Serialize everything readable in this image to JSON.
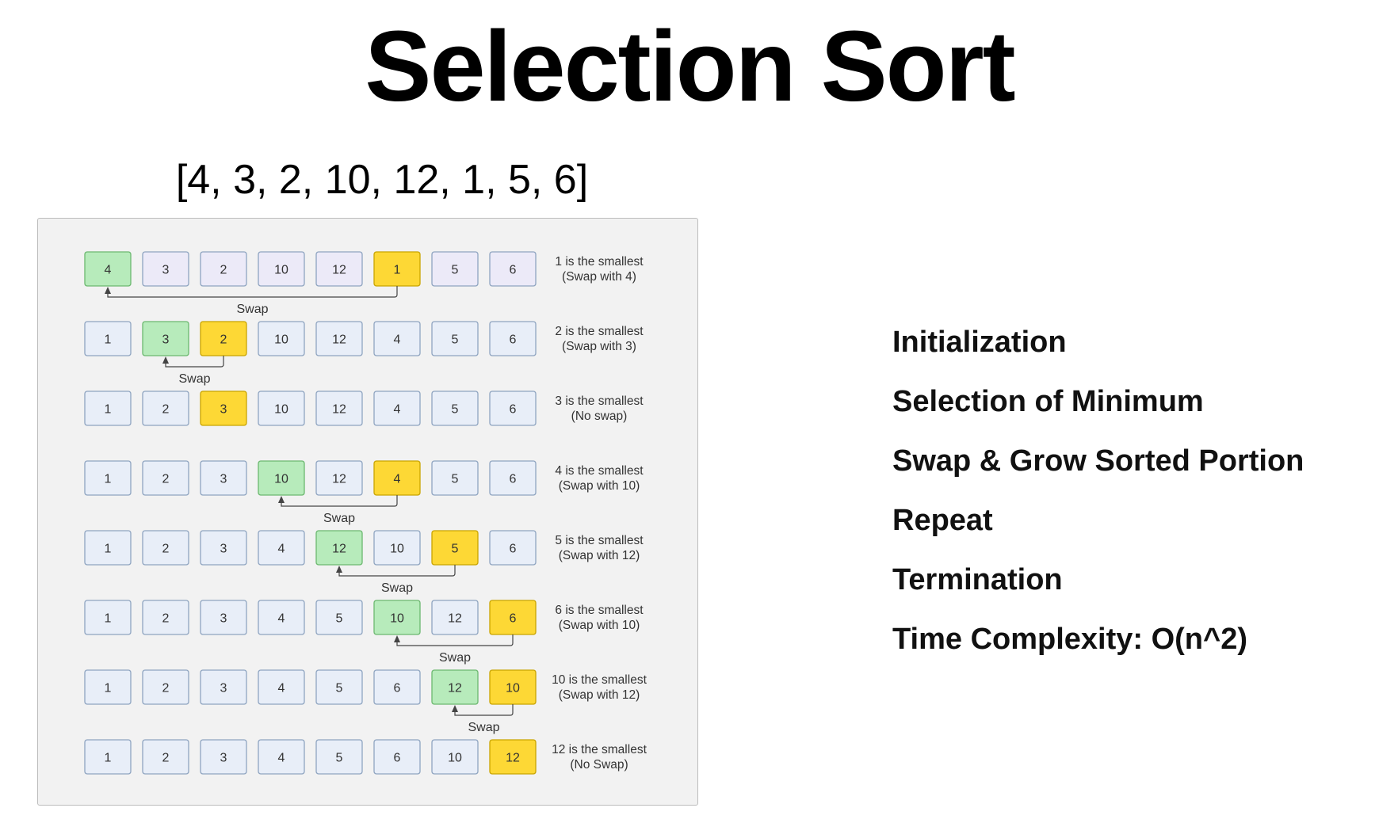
{
  "title": "Selection Sort",
  "subtitle": "[4, 3, 2, 10, 12, 1, 5, 6]",
  "colors": {
    "default_fill": "#e8eef8",
    "default_stroke": "#8ea4c0",
    "first_row_default_fill": "#eceaf8",
    "swap_target_fill": "#b7ebbb",
    "swap_target_stroke": "#6bb86f",
    "minimum_fill": "#fdd835",
    "minimum_stroke": "#c9a400",
    "connector": "#444444",
    "panel_background": "#f2f2f2"
  },
  "diagram": {
    "rows": [
      {
        "values": [
          "4",
          "3",
          "2",
          "10",
          "12",
          "1",
          "5",
          "6"
        ],
        "target_index": 0,
        "min_index": 5,
        "swap_label": "Swap",
        "note_lines": [
          "1 is the smallest",
          "(Swap with 4)"
        ]
      },
      {
        "values": [
          "1",
          "3",
          "2",
          "10",
          "12",
          "4",
          "5",
          "6"
        ],
        "target_index": 1,
        "min_index": 2,
        "swap_label": "Swap",
        "note_lines": [
          "2 is the smallest",
          "(Swap with 3)"
        ]
      },
      {
        "values": [
          "1",
          "2",
          "3",
          "10",
          "12",
          "4",
          "5",
          "6"
        ],
        "target_index": null,
        "min_index": 2,
        "swap_label": "",
        "note_lines": [
          "3 is the smallest",
          "(No swap)"
        ]
      },
      {
        "values": [
          "1",
          "2",
          "3",
          "10",
          "12",
          "4",
          "5",
          "6"
        ],
        "target_index": 3,
        "min_index": 5,
        "swap_label": "Swap",
        "note_lines": [
          "4 is the smallest",
          "(Swap with 10)"
        ]
      },
      {
        "values": [
          "1",
          "2",
          "3",
          "4",
          "12",
          "10",
          "5",
          "6"
        ],
        "target_index": 4,
        "min_index": 6,
        "swap_label": "Swap",
        "note_lines": [
          "5 is the smallest",
          "(Swap with 12)"
        ]
      },
      {
        "values": [
          "1",
          "2",
          "3",
          "4",
          "5",
          "10",
          "12",
          "6"
        ],
        "target_index": 5,
        "min_index": 7,
        "swap_label": "Swap",
        "note_lines": [
          "6 is the smallest",
          "(Swap with 10)"
        ]
      },
      {
        "values": [
          "1",
          "2",
          "3",
          "4",
          "5",
          "6",
          "12",
          "10"
        ],
        "target_index": 6,
        "min_index": 7,
        "swap_label": "Swap",
        "note_lines": [
          "10 is the smallest",
          "(Swap with 12)"
        ]
      },
      {
        "values": [
          "1",
          "2",
          "3",
          "4",
          "5",
          "6",
          "10",
          "12"
        ],
        "target_index": null,
        "min_index": 7,
        "swap_label": "",
        "note_lines": [
          "12 is the smallest",
          "(No Swap)"
        ]
      }
    ]
  },
  "steps": [
    "Initialization",
    "Selection of Minimum",
    "Swap & Grow Sorted Portion",
    "Repeat",
    "Termination",
    "Time Complexity: O(n^2)"
  ]
}
